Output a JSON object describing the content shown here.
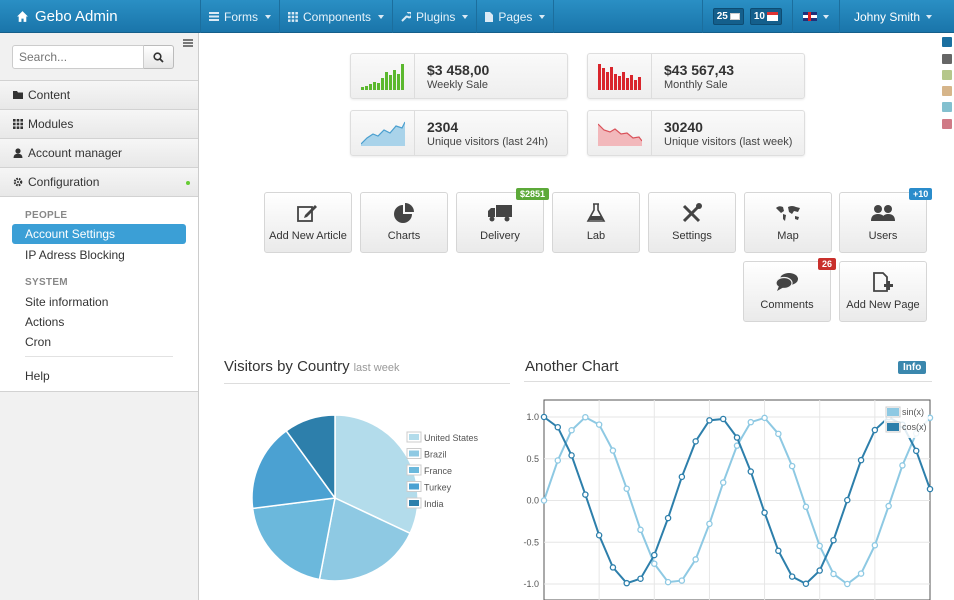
{
  "brand": "Gebo Admin",
  "nav": [
    {
      "label": "Forms",
      "icon": "list-icon"
    },
    {
      "label": "Components",
      "icon": "grid-icon"
    },
    {
      "label": "Plugins",
      "icon": "wrench-icon"
    },
    {
      "label": "Pages",
      "icon": "file-icon"
    }
  ],
  "mail_count": "25",
  "calendar_count": "10",
  "user_name": "Johny Smith",
  "search": {
    "placeholder": "Search..."
  },
  "sidebar": {
    "accordion": [
      "Content",
      "Modules",
      "Account manager",
      "Configuration"
    ],
    "section_people": "PEOPLE",
    "account_settings": "Account Settings",
    "ip_blocking": "IP Adress Blocking",
    "section_system": "SYSTEM",
    "site_information": "Site information",
    "actions": "Actions",
    "cron": "Cron",
    "help": "Help"
  },
  "stats": [
    {
      "value": "$3 458,00",
      "label": "Weekly Sale"
    },
    {
      "value": "$43 567,43",
      "label": "Monthly Sale"
    },
    {
      "value": "2304",
      "label": "Unique visitors (last 24h)"
    },
    {
      "value": "30240",
      "label": "Unique visitors (last week)"
    }
  ],
  "shortcuts": [
    {
      "label": "Add New Article",
      "icon": "edit-icon"
    },
    {
      "label": "Charts",
      "icon": "pie-chart-icon"
    },
    {
      "label": "Delivery",
      "icon": "truck-icon",
      "badge": "$2851"
    },
    {
      "label": "Lab",
      "icon": "flask-icon"
    },
    {
      "label": "Settings",
      "icon": "tools-icon"
    },
    {
      "label": "Map",
      "icon": "world-map-icon"
    },
    {
      "label": "Users",
      "icon": "users-icon",
      "badge": "+10"
    },
    {
      "label": "Comments",
      "icon": "comments-icon",
      "badge": "26"
    },
    {
      "label": "Add New Page",
      "icon": "add-page-icon"
    }
  ],
  "badge_colors": {
    "green": "#5ca939",
    "blue": "#2a8ccb",
    "red": "#c9302c"
  },
  "style_swatches": [
    "#1a6fa0",
    "#666666",
    "#b5c78b",
    "#d6b58a",
    "#83c0cf",
    "#d07a86"
  ],
  "visitors_title": "Visitors by Country",
  "visitors_subtitle": "last week",
  "another_chart_title": "Another Chart",
  "info_label": "Info",
  "chart_data": [
    {
      "type": "pie",
      "title": "Visitors by Country",
      "subtitle": "last week",
      "categories": [
        "United States",
        "Brazil",
        "France",
        "Turkey",
        "India"
      ],
      "values": [
        32,
        21,
        20,
        17,
        10
      ],
      "colors": [
        "#b3dceb",
        "#8ec9e3",
        "#6bb8dc",
        "#4ba1d2",
        "#2d7fab"
      ],
      "legend": "right"
    },
    {
      "type": "line",
      "title": "Another Chart",
      "x_range": [
        0,
        14
      ],
      "ylim": [
        -1.0,
        1.0
      ],
      "yticks": [
        1.0,
        0.5,
        0.0,
        -0.5,
        -1.0
      ],
      "grid": true,
      "legend": "top-right",
      "series": [
        {
          "name": "sin(x)",
          "function": "sin",
          "color": "#8ec9e3"
        },
        {
          "name": "cos(x)",
          "function": "cos",
          "color": "#2d7fab"
        }
      ],
      "x_step": 0.5
    }
  ]
}
